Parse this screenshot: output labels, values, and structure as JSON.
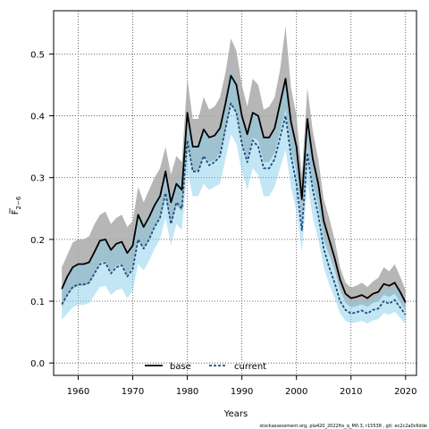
{
  "chart_data": {
    "type": "line",
    "title": "",
    "xlabel": "Years",
    "ylabel": "F2-6",
    "ylabel_main": "F",
    "ylabel_sub": "2−6",
    "xlim": [
      1955.5,
      2022
    ],
    "ylim": [
      -0.02,
      0.57
    ],
    "xticks": [
      1960,
      1970,
      1980,
      1990,
      2000,
      2010,
      2020
    ],
    "yticks": [
      0.0,
      0.1,
      0.2,
      0.3,
      0.4,
      0.5
    ],
    "ytick_labels": [
      "0.0",
      "0.1",
      "0.2",
      "0.3",
      "0.4",
      "0.5"
    ],
    "grid": true,
    "legend_position": "bottom-center",
    "x": [
      1957,
      1958,
      1959,
      1960,
      1961,
      1962,
      1963,
      1964,
      1965,
      1966,
      1967,
      1968,
      1969,
      1970,
      1971,
      1972,
      1973,
      1974,
      1975,
      1976,
      1977,
      1978,
      1979,
      1980,
      1981,
      1982,
      1983,
      1984,
      1985,
      1986,
      1987,
      1988,
      1989,
      1990,
      1991,
      1992,
      1993,
      1994,
      1995,
      1996,
      1997,
      1998,
      1999,
      2000,
      2001,
      2002,
      2003,
      2004,
      2005,
      2006,
      2007,
      2008,
      2009,
      2010,
      2011,
      2012,
      2013,
      2014,
      2015,
      2016,
      2017,
      2018,
      2019,
      2020
    ],
    "series": [
      {
        "name": "base",
        "color": "#000000",
        "band_color": "#a9a9a9",
        "line_style": "solid",
        "values": [
          0.12,
          0.14,
          0.155,
          0.16,
          0.16,
          0.163,
          0.18,
          0.198,
          0.2,
          0.183,
          0.193,
          0.196,
          0.178,
          0.19,
          0.24,
          0.22,
          0.236,
          0.255,
          0.27,
          0.31,
          0.26,
          0.29,
          0.28,
          0.405,
          0.35,
          0.35,
          0.378,
          0.365,
          0.368,
          0.38,
          0.42,
          0.465,
          0.45,
          0.4,
          0.37,
          0.405,
          0.4,
          0.365,
          0.365,
          0.38,
          0.42,
          0.46,
          0.39,
          0.35,
          0.265,
          0.395,
          0.33,
          0.29,
          0.23,
          0.2,
          0.17,
          0.135,
          0.112,
          0.105,
          0.107,
          0.11,
          0.105,
          0.112,
          0.115,
          0.128,
          0.125,
          0.13,
          0.115,
          0.098
        ],
        "lower": [
          0.09,
          0.11,
          0.12,
          0.125,
          0.125,
          0.128,
          0.145,
          0.163,
          0.165,
          0.148,
          0.158,
          0.16,
          0.143,
          0.155,
          0.2,
          0.185,
          0.2,
          0.22,
          0.235,
          0.27,
          0.225,
          0.255,
          0.245,
          0.36,
          0.31,
          0.31,
          0.335,
          0.325,
          0.328,
          0.34,
          0.375,
          0.42,
          0.405,
          0.36,
          0.33,
          0.365,
          0.36,
          0.325,
          0.325,
          0.34,
          0.375,
          0.41,
          0.345,
          0.31,
          0.23,
          0.35,
          0.29,
          0.255,
          0.2,
          0.175,
          0.15,
          0.118,
          0.097,
          0.09,
          0.092,
          0.095,
          0.091,
          0.097,
          0.1,
          0.11,
          0.107,
          0.112,
          0.099,
          0.083
        ],
        "upper": [
          0.155,
          0.175,
          0.195,
          0.2,
          0.2,
          0.205,
          0.225,
          0.24,
          0.245,
          0.225,
          0.235,
          0.24,
          0.22,
          0.23,
          0.285,
          0.26,
          0.28,
          0.3,
          0.315,
          0.35,
          0.305,
          0.335,
          0.325,
          0.46,
          0.395,
          0.395,
          0.43,
          0.41,
          0.415,
          0.43,
          0.47,
          0.525,
          0.505,
          0.45,
          0.415,
          0.46,
          0.45,
          0.41,
          0.415,
          0.43,
          0.475,
          0.545,
          0.445,
          0.4,
          0.305,
          0.445,
          0.375,
          0.33,
          0.265,
          0.235,
          0.2,
          0.155,
          0.13,
          0.122,
          0.125,
          0.13,
          0.123,
          0.132,
          0.138,
          0.155,
          0.148,
          0.16,
          0.14,
          0.118
        ]
      },
      {
        "name": "current",
        "color": "#1f4e79",
        "band_color": "#87ceeb",
        "line_style": "dashed",
        "values": [
          0.095,
          0.11,
          0.123,
          0.127,
          0.127,
          0.13,
          0.145,
          0.16,
          0.162,
          0.145,
          0.155,
          0.158,
          0.14,
          0.152,
          0.2,
          0.185,
          0.2,
          0.22,
          0.235,
          0.275,
          0.225,
          0.26,
          0.25,
          0.36,
          0.31,
          0.31,
          0.335,
          0.32,
          0.325,
          0.335,
          0.38,
          0.42,
          0.405,
          0.355,
          0.325,
          0.36,
          0.35,
          0.315,
          0.315,
          0.33,
          0.365,
          0.4,
          0.335,
          0.29,
          0.215,
          0.34,
          0.28,
          0.24,
          0.185,
          0.155,
          0.13,
          0.1,
          0.086,
          0.08,
          0.082,
          0.085,
          0.08,
          0.086,
          0.088,
          0.1,
          0.096,
          0.102,
          0.09,
          0.078
        ],
        "lower": [
          0.07,
          0.08,
          0.09,
          0.094,
          0.094,
          0.097,
          0.11,
          0.123,
          0.125,
          0.11,
          0.118,
          0.12,
          0.105,
          0.117,
          0.16,
          0.15,
          0.165,
          0.185,
          0.2,
          0.235,
          0.19,
          0.225,
          0.215,
          0.31,
          0.27,
          0.27,
          0.29,
          0.28,
          0.285,
          0.29,
          0.33,
          0.37,
          0.355,
          0.31,
          0.28,
          0.315,
          0.305,
          0.27,
          0.27,
          0.285,
          0.315,
          0.345,
          0.285,
          0.245,
          0.18,
          0.29,
          0.235,
          0.2,
          0.155,
          0.127,
          0.105,
          0.08,
          0.068,
          0.064,
          0.066,
          0.068,
          0.064,
          0.069,
          0.071,
          0.081,
          0.078,
          0.083,
          0.073,
          0.063
        ],
        "upper": [
          0.125,
          0.14,
          0.155,
          0.16,
          0.16,
          0.163,
          0.18,
          0.197,
          0.2,
          0.18,
          0.19,
          0.195,
          0.175,
          0.19,
          0.24,
          0.225,
          0.24,
          0.26,
          0.275,
          0.315,
          0.265,
          0.3,
          0.29,
          0.41,
          0.355,
          0.355,
          0.38,
          0.365,
          0.37,
          0.385,
          0.43,
          0.475,
          0.455,
          0.4,
          0.375,
          0.41,
          0.4,
          0.365,
          0.365,
          0.38,
          0.42,
          0.46,
          0.385,
          0.34,
          0.255,
          0.395,
          0.325,
          0.285,
          0.22,
          0.185,
          0.155,
          0.122,
          0.105,
          0.098,
          0.1,
          0.104,
          0.098,
          0.105,
          0.108,
          0.121,
          0.117,
          0.124,
          0.11,
          0.095
        ]
      }
    ]
  },
  "footnote": "stockassessment.org, pla420_2022ftx_q_M0.3, r15538 , git: ec2c2a0c6dde"
}
